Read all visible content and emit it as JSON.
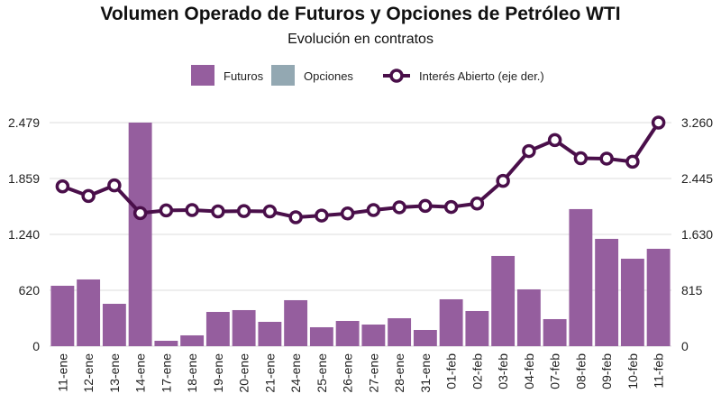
{
  "chart_data": {
    "type": "bar+line",
    "title": "Volumen Operado de Futuros y Opciones de Petróleo WTI",
    "subtitle": "Evolución en contratos",
    "categories": [
      "11-ene",
      "12-ene",
      "13-ene",
      "14-ene",
      "17-ene",
      "18-ene",
      "19-ene",
      "20-ene",
      "21-ene",
      "24-ene",
      "25-ene",
      "26-ene",
      "27-ene",
      "28-ene",
      "31-ene",
      "01-feb",
      "02-feb",
      "03-feb",
      "04-feb",
      "07-feb",
      "08-feb",
      "09-feb",
      "10-feb",
      "11-feb"
    ],
    "series": [
      {
        "name": "Futuros",
        "type": "bar",
        "axis": "left",
        "color": "#955e9e",
        "values": [
          670,
          740,
          470,
          2479,
          60,
          120,
          380,
          400,
          270,
          510,
          210,
          280,
          240,
          310,
          180,
          520,
          390,
          1000,
          630,
          300,
          1520,
          1190,
          970,
          1080
        ]
      },
      {
        "name": "Opciones",
        "type": "bar",
        "axis": "left",
        "color": "#93a8b2",
        "values": [
          0,
          0,
          0,
          0,
          0,
          0,
          0,
          0,
          0,
          0,
          0,
          0,
          0,
          0,
          0,
          0,
          0,
          0,
          0,
          0,
          0,
          0,
          0,
          0
        ]
      },
      {
        "name": "Interés Abierto (eje der.)",
        "type": "line",
        "axis": "right",
        "color": "#4a0f4a",
        "values": [
          2330,
          2190,
          2345,
          1940,
          1980,
          1985,
          1965,
          1970,
          1965,
          1880,
          1905,
          1935,
          1985,
          2025,
          2045,
          2030,
          2080,
          2410,
          2845,
          3005,
          2740,
          2735,
          2690,
          3260
        ]
      }
    ],
    "left_axis": {
      "ticks": [
        0,
        620,
        1240,
        1859,
        2479
      ],
      "tick_labels": [
        "0",
        "620",
        "1.240",
        "1.859",
        "2.479"
      ],
      "range": [
        0,
        2479
      ]
    },
    "right_axis": {
      "ticks": [
        0,
        815,
        1630,
        2445,
        3260
      ],
      "tick_labels": [
        "0",
        "815",
        "1.630",
        "2.445",
        "3.260"
      ],
      "range": [
        0,
        3260
      ]
    },
    "grid": true,
    "legend_position": "top-center"
  }
}
